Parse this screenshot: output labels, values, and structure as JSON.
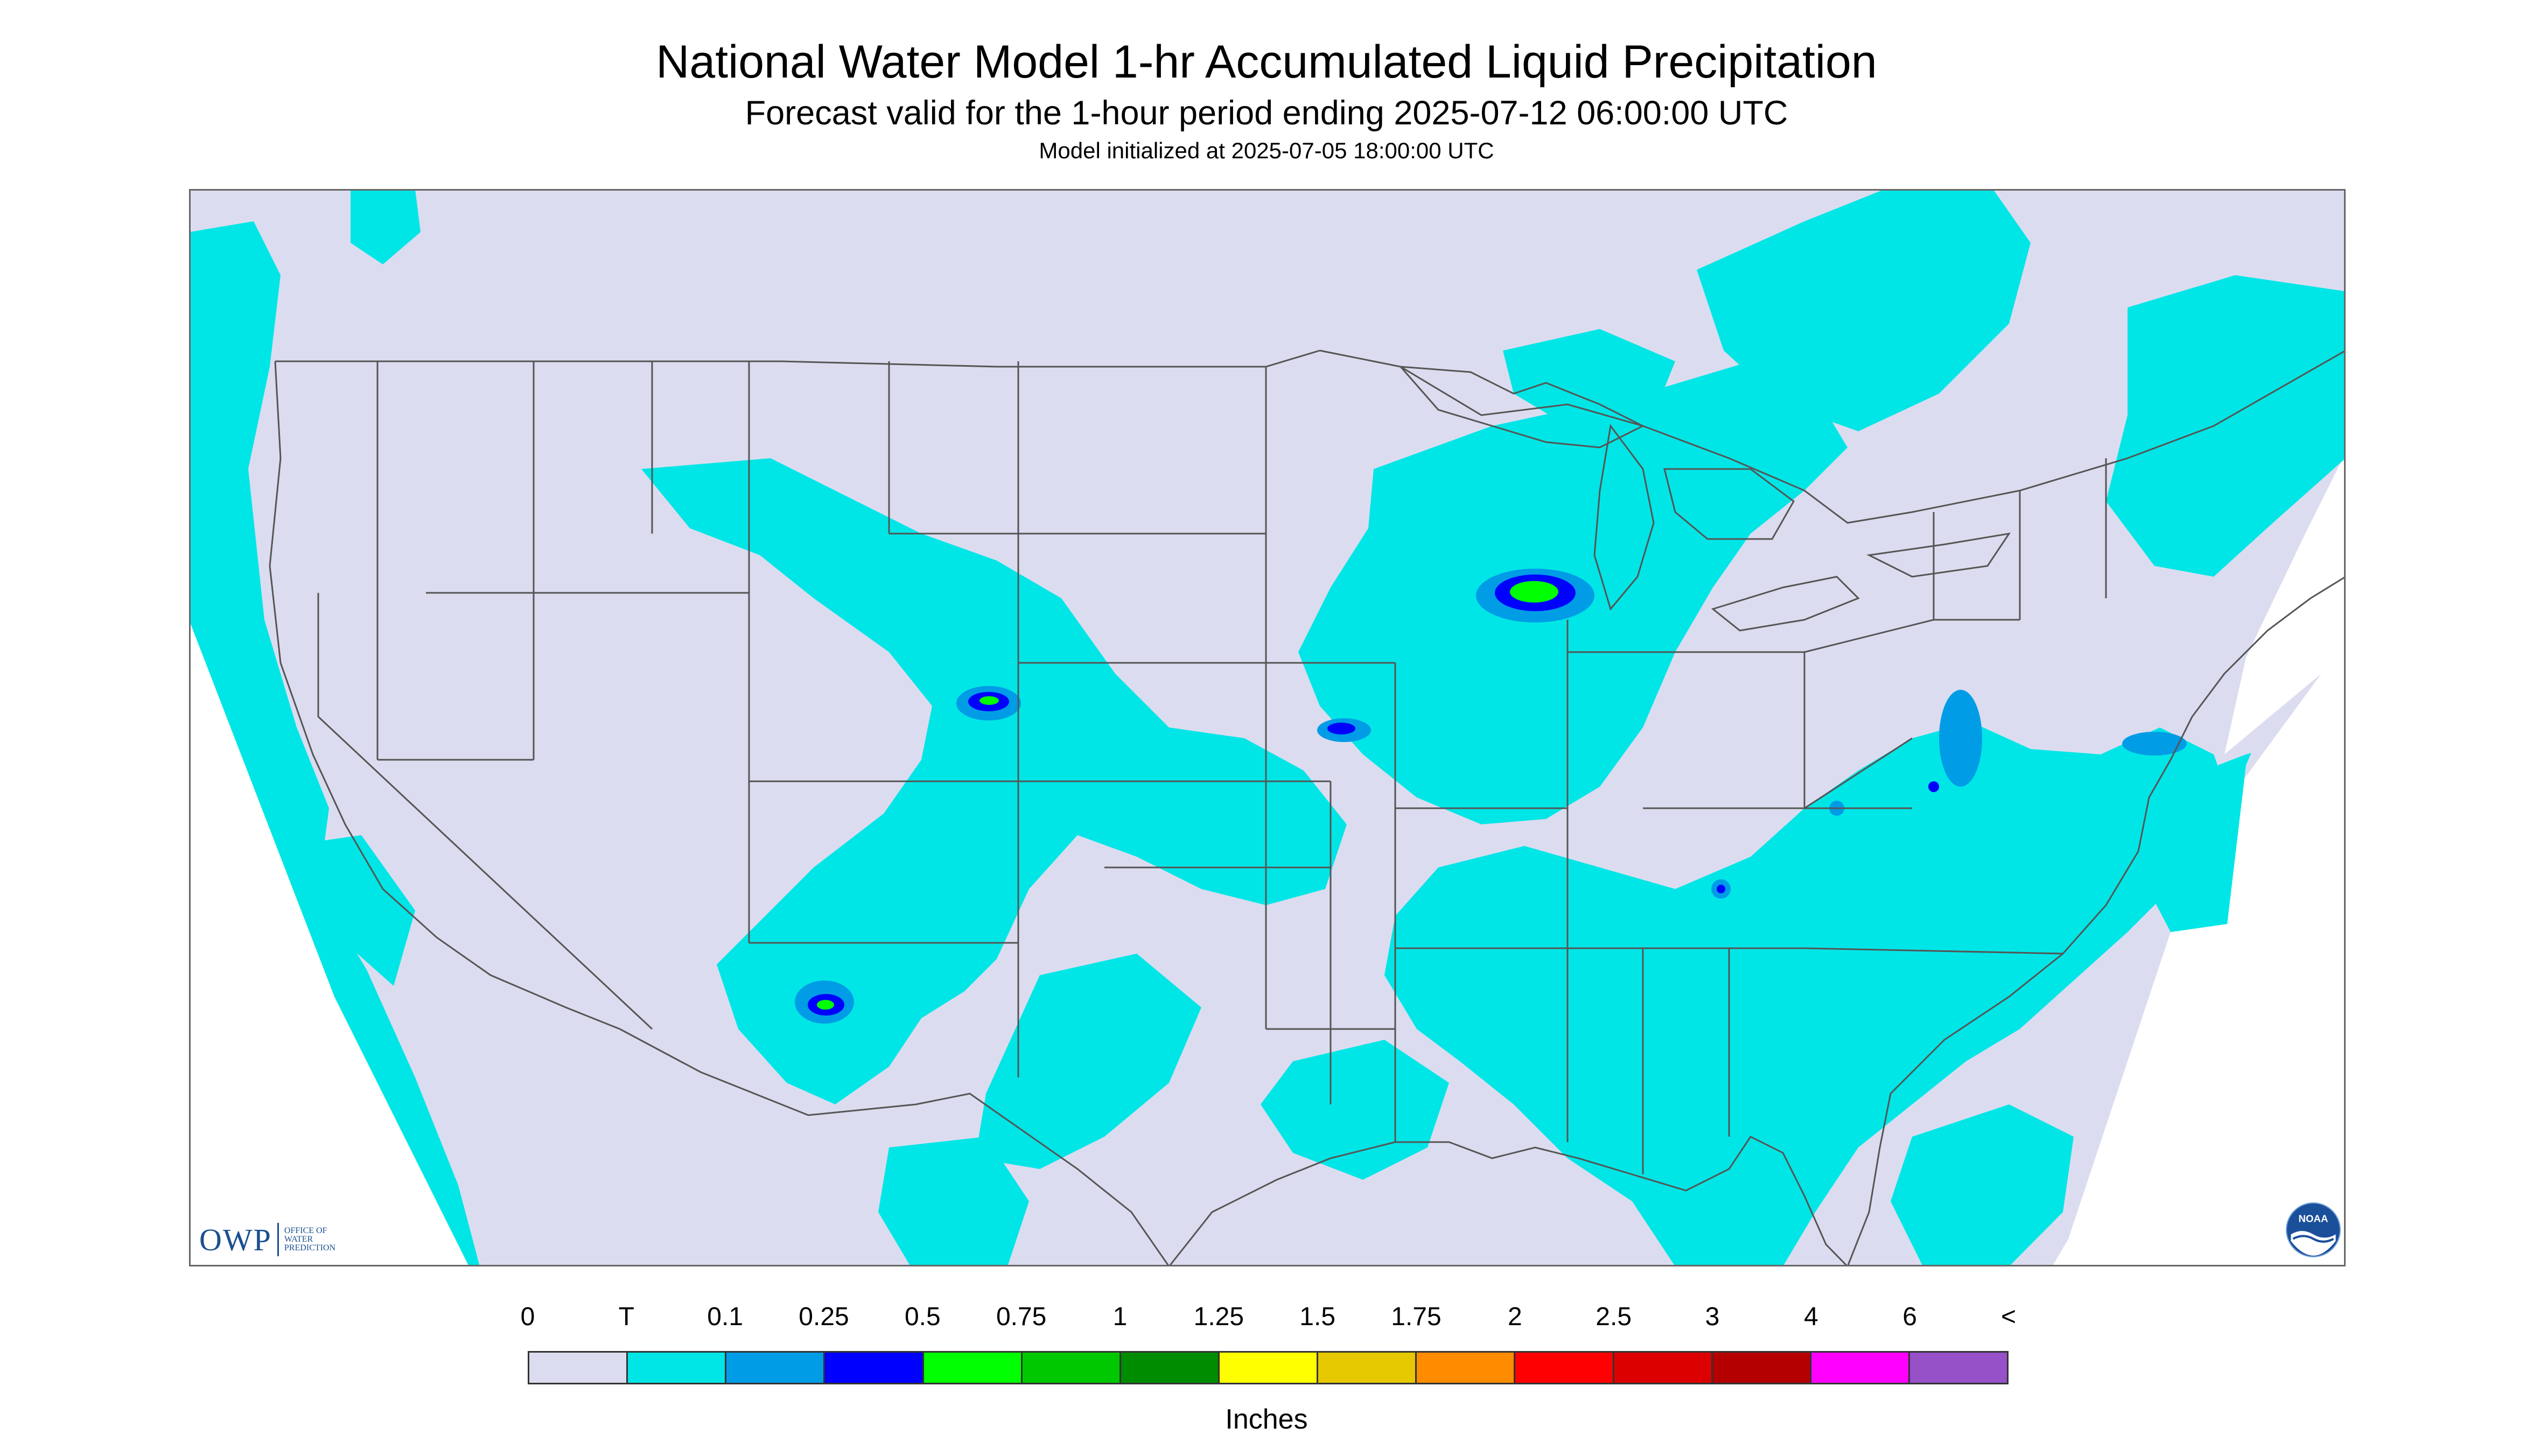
{
  "title": "National Water Model 1-hr Accumulated Liquid Precipitation",
  "subtitle": "Forecast valid for the 1-hour period ending 2025-07-12 06:00:00 UTC",
  "model_init": "Model initialized at 2025-07-05 18:00:00 UTC",
  "legend": {
    "units": "Inches",
    "labels": [
      "0",
      "T",
      "0.1",
      "0.25",
      "0.5",
      "0.75",
      "1",
      "1.25",
      "1.5",
      "1.75",
      "2",
      "2.5",
      "3",
      "4",
      "6",
      "<"
    ],
    "colors": [
      "#dcdcf0",
      "#00e6e6",
      "#009ce6",
      "#0000ff",
      "#00ff00",
      "#00c800",
      "#008c00",
      "#ffff00",
      "#e6c800",
      "#ff8c00",
      "#ff0000",
      "#dc0000",
      "#b40000",
      "#ff00ff",
      "#9650c8"
    ]
  },
  "colors": {
    "background": "#ffffff",
    "no_data": "#ffffff",
    "zero_precip": "#dcdcf0",
    "trace": "#00e6e6",
    "light": "#009ce6",
    "moderate": "#0000ff",
    "heavy": "#00ff00",
    "boundaries": "#555555"
  },
  "logos": {
    "owp_mark": "OWP",
    "owp_text": "OFFICE OF WATER PREDICTION",
    "noaa_text": "NOAA",
    "owp_icon": "owp-logo-icon",
    "noaa_icon": "noaa-logo-icon"
  }
}
